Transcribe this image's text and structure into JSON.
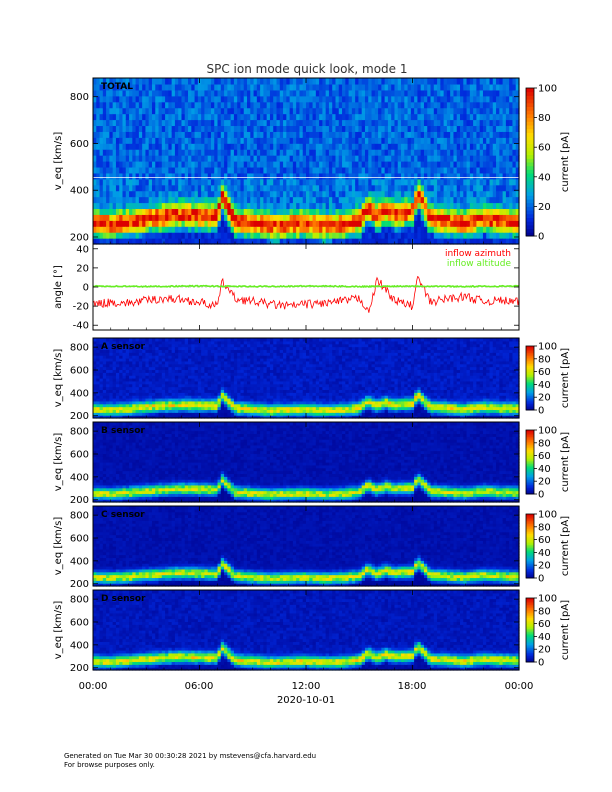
{
  "title": "SPC ion mode quick look, mode 1",
  "footer": {
    "line1": "Generated on Tue Mar 30 00:30:28 2021 by mstevens@cfa.harvard.edu",
    "line2": "For browse purposes only."
  },
  "chart_data": [
    {
      "type": "heatmap",
      "panel_label": "TOTAL",
      "ylabel": "v_eq [km/s]",
      "ylim": [
        170,
        880
      ],
      "yticks": [
        200,
        400,
        600,
        800
      ],
      "colorbar": {
        "label": "current [pA]",
        "range": [
          0,
          100
        ],
        "ticks": [
          0,
          20,
          40,
          60,
          80,
          100
        ]
      },
      "background_level": 22,
      "beam_peak_level": 75,
      "gap_line_kms": 455
    },
    {
      "type": "line",
      "ylabel": "angle [°]",
      "ylim": [
        -45,
        45
      ],
      "yticks": [
        -40,
        -20,
        0,
        20,
        40
      ],
      "series": [
        {
          "name": "inflow azimuth",
          "color": "#ff0000",
          "x": [
            0,
            1,
            2,
            3,
            4,
            5,
            6,
            7,
            7.3,
            8,
            9,
            10,
            11,
            12,
            13,
            14,
            15,
            15.6,
            16,
            17,
            18,
            18.3,
            19,
            20,
            21,
            22,
            23,
            24
          ],
          "y": [
            -18,
            -16,
            -17,
            -14,
            -12,
            -13,
            -16,
            -20,
            6,
            -12,
            -15,
            -18,
            -20,
            -18,
            -17,
            -15,
            -12,
            -25,
            8,
            -14,
            -20,
            10,
            -16,
            -12,
            -10,
            -15,
            -14,
            -16
          ]
        },
        {
          "name": "inflow altitude",
          "color": "#66ee22",
          "x": [
            0,
            3,
            6,
            9,
            12,
            15,
            18,
            21,
            24
          ],
          "y": [
            1,
            0.5,
            1,
            0.5,
            1,
            0.5,
            1,
            0.5,
            1
          ]
        }
      ]
    },
    {
      "type": "heatmap",
      "panel_label": "A sensor",
      "ylabel": "v_eq [km/s]",
      "ylim": [
        180,
        880
      ],
      "yticks": [
        200,
        400,
        600,
        800
      ],
      "colorbar": {
        "label": "current [pA]",
        "range": [
          0,
          100
        ],
        "ticks": [
          0,
          20,
          40,
          60,
          80,
          100
        ]
      },
      "background_level": 8,
      "beam_peak_level": 55
    },
    {
      "type": "heatmap",
      "panel_label": "B sensor",
      "ylabel": "v_eq [km/s]",
      "ylim": [
        180,
        880
      ],
      "yticks": [
        200,
        400,
        600,
        800
      ],
      "colorbar": {
        "label": "current [pA]",
        "range": [
          0,
          100
        ],
        "ticks": [
          0,
          20,
          40,
          60,
          80,
          100
        ]
      },
      "background_level": 5,
      "beam_peak_level": 55
    },
    {
      "type": "heatmap",
      "panel_label": "C sensor",
      "ylabel": "v_eq [km/s]",
      "ylim": [
        180,
        880
      ],
      "yticks": [
        200,
        400,
        600,
        800
      ],
      "colorbar": {
        "label": "current [pA]",
        "range": [
          0,
          100
        ],
        "ticks": [
          0,
          20,
          40,
          60,
          80,
          100
        ]
      },
      "background_level": 5,
      "beam_peak_level": 55
    },
    {
      "type": "heatmap",
      "panel_label": "D sensor",
      "ylabel": "v_eq [km/s]",
      "ylim": [
        180,
        880
      ],
      "yticks": [
        200,
        400,
        600,
        800
      ],
      "colorbar": {
        "label": "current [pA]",
        "range": [
          0,
          100
        ],
        "ticks": [
          0,
          20,
          40,
          60,
          80,
          100
        ]
      },
      "background_level": 7,
      "beam_peak_level": 55
    }
  ],
  "time_axis": {
    "range_hours": [
      0,
      24
    ],
    "tick_hours": [
      0,
      6,
      12,
      18,
      24
    ],
    "tick_labels": [
      "00:00",
      "06:00",
      "12:00",
      "18:00",
      "00:00"
    ],
    "date_label": "2020-10-01"
  },
  "beam_profile": {
    "hours": [
      0,
      1,
      2,
      3,
      4,
      5,
      6,
      7,
      7.3,
      7.6,
      8,
      9,
      10,
      11,
      12,
      13,
      14,
      15,
      15.5,
      16,
      16.5,
      17,
      18,
      18.3,
      18.7,
      19,
      20,
      21,
      22,
      23,
      24
    ],
    "speed_kms": [
      260,
      255,
      265,
      280,
      290,
      300,
      295,
      290,
      380,
      330,
      270,
      260,
      250,
      255,
      260,
      250,
      255,
      270,
      330,
      290,
      320,
      300,
      310,
      390,
      330,
      280,
      270,
      260,
      280,
      270,
      265
    ]
  }
}
